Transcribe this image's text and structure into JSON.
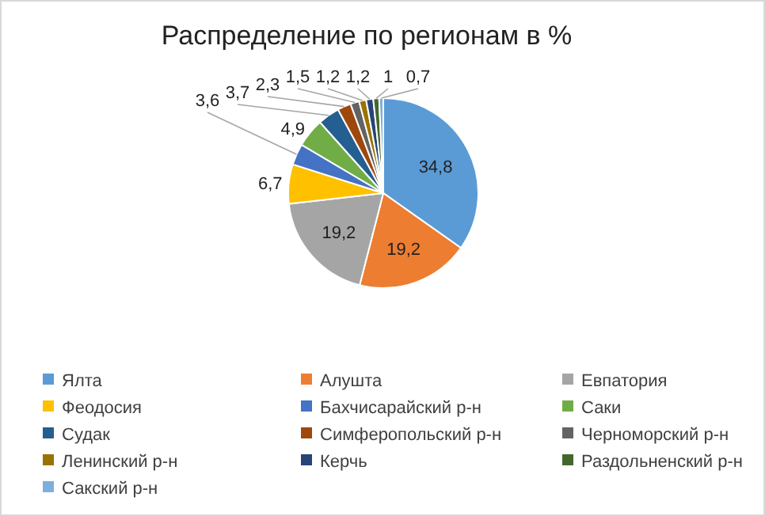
{
  "chart_data": {
    "type": "pie",
    "title": "Распределение по регионам в %",
    "categories": [
      "Ялта",
      "Алушта",
      "Евпатория",
      "Феодосия",
      "Бахчисарайский р-н",
      "Саки",
      "Судак",
      "Симферопольский р-н",
      "Черноморский р-н",
      "Ленинский р-н",
      "Керчь",
      "Раздольненский р-н",
      "Сакский р-н"
    ],
    "values": [
      34.8,
      19.2,
      19.2,
      6.7,
      3.6,
      4.9,
      3.7,
      2.3,
      1.5,
      1.2,
      1.2,
      1,
      0.7
    ],
    "value_labels": [
      "34,8",
      "19,2",
      "19,2",
      "6,7",
      "3,6",
      "4,9",
      "3,7",
      "2,3",
      "1,5",
      "1,2",
      "1,2",
      "1",
      "0,7"
    ],
    "colors": [
      "#5b9bd5",
      "#ed7d31",
      "#a5a5a5",
      "#ffc000",
      "#4472c4",
      "#70ad47",
      "#255e91",
      "#9e480e",
      "#636363",
      "#997300",
      "#264478",
      "#43682b",
      "#7cafdd"
    ],
    "legend": "bottom"
  }
}
